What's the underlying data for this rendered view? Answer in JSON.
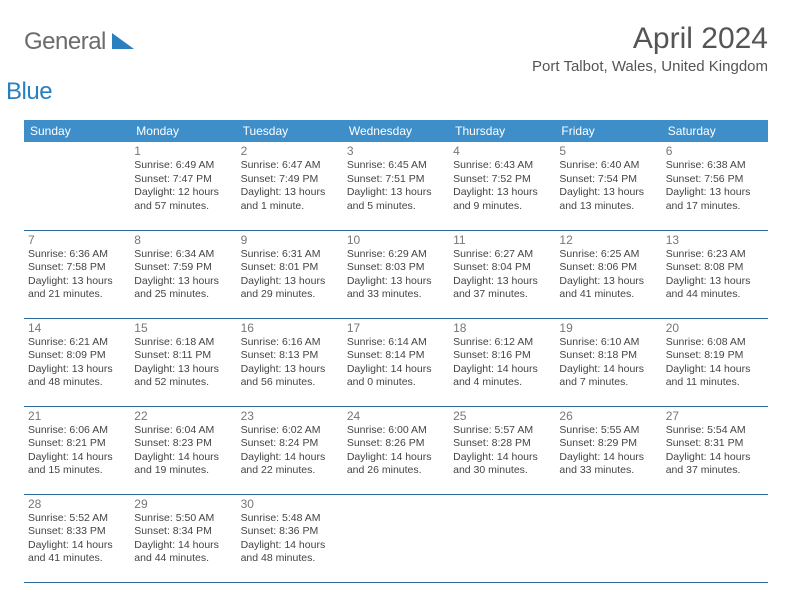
{
  "logo": {
    "word1": "General",
    "word2": "Blue"
  },
  "header": {
    "title": "April 2024",
    "location": "Port Talbot, Wales, United Kingdom"
  },
  "colors": {
    "header_bg": "#3d8ec9",
    "header_text": "#ffffff",
    "row_border": "#2d6aa0",
    "daynum": "#777777",
    "body_text": "#444444",
    "title_text": "#555555",
    "logo_gray": "#6b6b6b",
    "logo_blue": "#2a7fbf"
  },
  "weekdays": [
    "Sunday",
    "Monday",
    "Tuesday",
    "Wednesday",
    "Thursday",
    "Friday",
    "Saturday"
  ],
  "weeks": [
    [
      null,
      {
        "n": "1",
        "sr": "Sunrise: 6:49 AM",
        "ss": "Sunset: 7:47 PM",
        "d1": "Daylight: 12 hours",
        "d2": "and 57 minutes."
      },
      {
        "n": "2",
        "sr": "Sunrise: 6:47 AM",
        "ss": "Sunset: 7:49 PM",
        "d1": "Daylight: 13 hours",
        "d2": "and 1 minute."
      },
      {
        "n": "3",
        "sr": "Sunrise: 6:45 AM",
        "ss": "Sunset: 7:51 PM",
        "d1": "Daylight: 13 hours",
        "d2": "and 5 minutes."
      },
      {
        "n": "4",
        "sr": "Sunrise: 6:43 AM",
        "ss": "Sunset: 7:52 PM",
        "d1": "Daylight: 13 hours",
        "d2": "and 9 minutes."
      },
      {
        "n": "5",
        "sr": "Sunrise: 6:40 AM",
        "ss": "Sunset: 7:54 PM",
        "d1": "Daylight: 13 hours",
        "d2": "and 13 minutes."
      },
      {
        "n": "6",
        "sr": "Sunrise: 6:38 AM",
        "ss": "Sunset: 7:56 PM",
        "d1": "Daylight: 13 hours",
        "d2": "and 17 minutes."
      }
    ],
    [
      {
        "n": "7",
        "sr": "Sunrise: 6:36 AM",
        "ss": "Sunset: 7:58 PM",
        "d1": "Daylight: 13 hours",
        "d2": "and 21 minutes."
      },
      {
        "n": "8",
        "sr": "Sunrise: 6:34 AM",
        "ss": "Sunset: 7:59 PM",
        "d1": "Daylight: 13 hours",
        "d2": "and 25 minutes."
      },
      {
        "n": "9",
        "sr": "Sunrise: 6:31 AM",
        "ss": "Sunset: 8:01 PM",
        "d1": "Daylight: 13 hours",
        "d2": "and 29 minutes."
      },
      {
        "n": "10",
        "sr": "Sunrise: 6:29 AM",
        "ss": "Sunset: 8:03 PM",
        "d1": "Daylight: 13 hours",
        "d2": "and 33 minutes."
      },
      {
        "n": "11",
        "sr": "Sunrise: 6:27 AM",
        "ss": "Sunset: 8:04 PM",
        "d1": "Daylight: 13 hours",
        "d2": "and 37 minutes."
      },
      {
        "n": "12",
        "sr": "Sunrise: 6:25 AM",
        "ss": "Sunset: 8:06 PM",
        "d1": "Daylight: 13 hours",
        "d2": "and 41 minutes."
      },
      {
        "n": "13",
        "sr": "Sunrise: 6:23 AM",
        "ss": "Sunset: 8:08 PM",
        "d1": "Daylight: 13 hours",
        "d2": "and 44 minutes."
      }
    ],
    [
      {
        "n": "14",
        "sr": "Sunrise: 6:21 AM",
        "ss": "Sunset: 8:09 PM",
        "d1": "Daylight: 13 hours",
        "d2": "and 48 minutes."
      },
      {
        "n": "15",
        "sr": "Sunrise: 6:18 AM",
        "ss": "Sunset: 8:11 PM",
        "d1": "Daylight: 13 hours",
        "d2": "and 52 minutes."
      },
      {
        "n": "16",
        "sr": "Sunrise: 6:16 AM",
        "ss": "Sunset: 8:13 PM",
        "d1": "Daylight: 13 hours",
        "d2": "and 56 minutes."
      },
      {
        "n": "17",
        "sr": "Sunrise: 6:14 AM",
        "ss": "Sunset: 8:14 PM",
        "d1": "Daylight: 14 hours",
        "d2": "and 0 minutes."
      },
      {
        "n": "18",
        "sr": "Sunrise: 6:12 AM",
        "ss": "Sunset: 8:16 PM",
        "d1": "Daylight: 14 hours",
        "d2": "and 4 minutes."
      },
      {
        "n": "19",
        "sr": "Sunrise: 6:10 AM",
        "ss": "Sunset: 8:18 PM",
        "d1": "Daylight: 14 hours",
        "d2": "and 7 minutes."
      },
      {
        "n": "20",
        "sr": "Sunrise: 6:08 AM",
        "ss": "Sunset: 8:19 PM",
        "d1": "Daylight: 14 hours",
        "d2": "and 11 minutes."
      }
    ],
    [
      {
        "n": "21",
        "sr": "Sunrise: 6:06 AM",
        "ss": "Sunset: 8:21 PM",
        "d1": "Daylight: 14 hours",
        "d2": "and 15 minutes."
      },
      {
        "n": "22",
        "sr": "Sunrise: 6:04 AM",
        "ss": "Sunset: 8:23 PM",
        "d1": "Daylight: 14 hours",
        "d2": "and 19 minutes."
      },
      {
        "n": "23",
        "sr": "Sunrise: 6:02 AM",
        "ss": "Sunset: 8:24 PM",
        "d1": "Daylight: 14 hours",
        "d2": "and 22 minutes."
      },
      {
        "n": "24",
        "sr": "Sunrise: 6:00 AM",
        "ss": "Sunset: 8:26 PM",
        "d1": "Daylight: 14 hours",
        "d2": "and 26 minutes."
      },
      {
        "n": "25",
        "sr": "Sunrise: 5:57 AM",
        "ss": "Sunset: 8:28 PM",
        "d1": "Daylight: 14 hours",
        "d2": "and 30 minutes."
      },
      {
        "n": "26",
        "sr": "Sunrise: 5:55 AM",
        "ss": "Sunset: 8:29 PM",
        "d1": "Daylight: 14 hours",
        "d2": "and 33 minutes."
      },
      {
        "n": "27",
        "sr": "Sunrise: 5:54 AM",
        "ss": "Sunset: 8:31 PM",
        "d1": "Daylight: 14 hours",
        "d2": "and 37 minutes."
      }
    ],
    [
      {
        "n": "28",
        "sr": "Sunrise: 5:52 AM",
        "ss": "Sunset: 8:33 PM",
        "d1": "Daylight: 14 hours",
        "d2": "and 41 minutes."
      },
      {
        "n": "29",
        "sr": "Sunrise: 5:50 AM",
        "ss": "Sunset: 8:34 PM",
        "d1": "Daylight: 14 hours",
        "d2": "and 44 minutes."
      },
      {
        "n": "30",
        "sr": "Sunrise: 5:48 AM",
        "ss": "Sunset: 8:36 PM",
        "d1": "Daylight: 14 hours",
        "d2": "and 48 minutes."
      },
      null,
      null,
      null,
      null
    ]
  ]
}
